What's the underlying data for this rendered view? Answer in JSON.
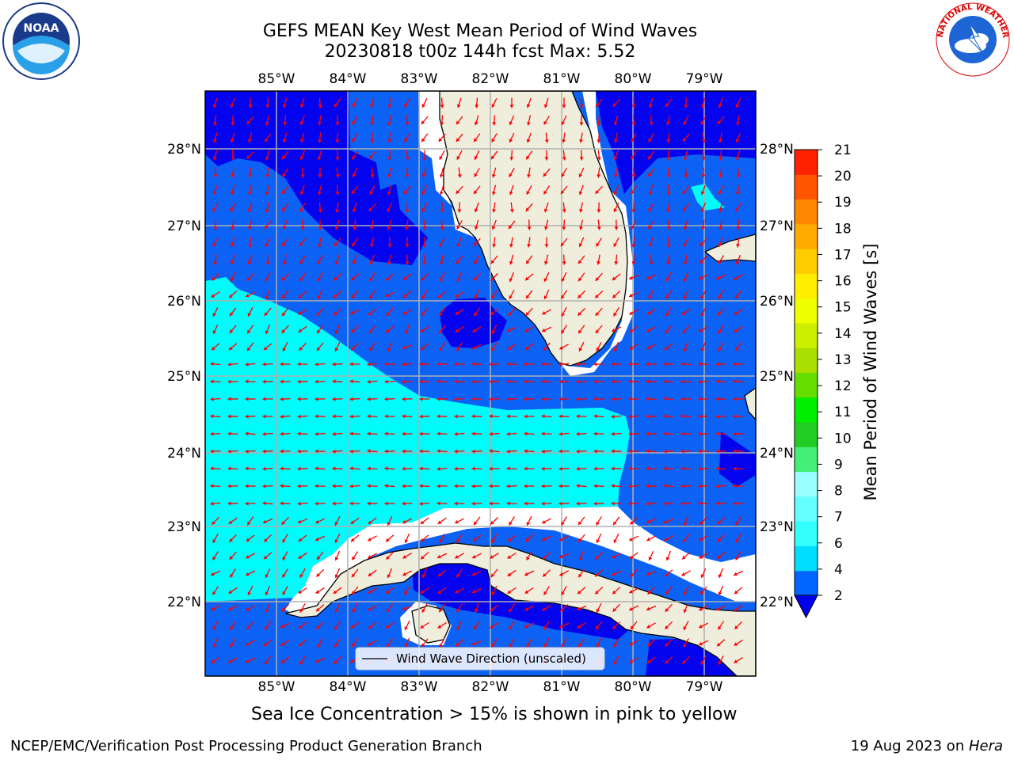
{
  "title_line1": "GEFS MEAN Key West Mean Period of Wind Waves",
  "title_line2": "20230818 t00z 144h fcst   Max: 5.52",
  "legend_label": "Wind Wave Direction (unscaled)",
  "colorbar_label": "Mean Period of Wind Waves [s]",
  "caption": "Sea Ice Concentration > 15% is shown in pink to yellow",
  "footer_left": "NCEP/EMC/Verification Post Processing Product Generation Branch",
  "footer_date": "19 Aug 2023 on ",
  "footer_host": "Hera",
  "logos": {
    "left": "noaa-logo",
    "right": "nws-logo"
  },
  "logo_text": {
    "noaa": "NOAA",
    "nws_ring": "NATIONAL WEATHER SERVICE"
  },
  "lon_ticks": [
    "85°W",
    "84°W",
    "83°W",
    "82°W",
    "81°W",
    "80°W",
    "79°W"
  ],
  "lat_ticks": [
    "28°N",
    "27°N",
    "26°N",
    "25°N",
    "24°N",
    "23°N",
    "22°N"
  ],
  "colorbar": {
    "levels": [
      "2",
      "4",
      "6",
      "7",
      "8",
      "9",
      "10",
      "11",
      "12",
      "13",
      "14",
      "15",
      "16",
      "17",
      "18",
      "19",
      "20",
      "21"
    ],
    "colors": [
      "#0066ff",
      "#00ddff",
      "#33ffff",
      "#66ffff",
      "#99ffff",
      "#44ee77",
      "#22cc22",
      "#00ee00",
      "#66dd00",
      "#aadd00",
      "#ccee00",
      "#eeff00",
      "#ffee00",
      "#ffcc00",
      "#ffaa00",
      "#ff8800",
      "#ff5500",
      "#ff2200",
      "#ff0000"
    ],
    "under_color": "#0000ee"
  },
  "colors": {
    "land": "#efeddb",
    "water_blue": "#0b62f5",
    "water_dark": "#0303ee",
    "water_cyan": "#00fbfb",
    "arrow": "#ff0000",
    "grid": "#aaaaaa"
  }
}
